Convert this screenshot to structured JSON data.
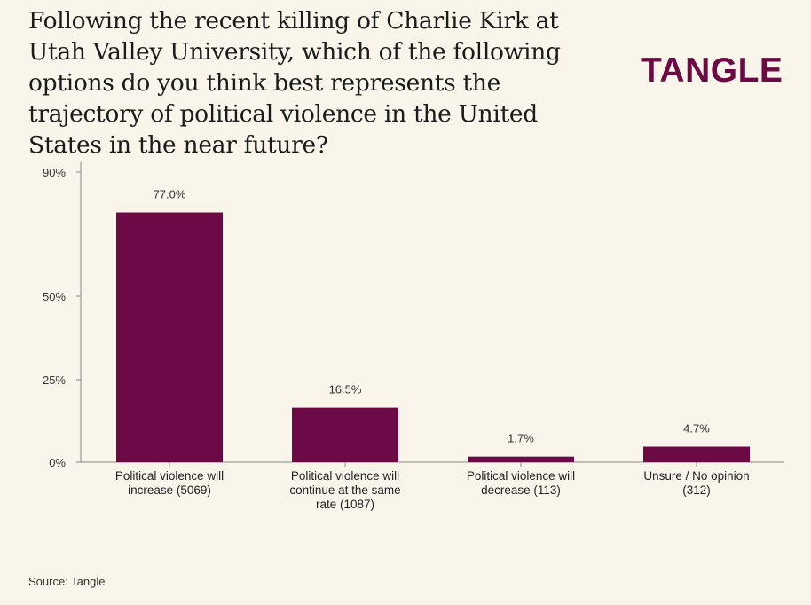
{
  "header": {
    "question": "Following the recent killing of Charlie Kirk at Utah Valley University, which of the following options do you think best represents the trajectory of political violence in the United States in the near future?",
    "logo": "TANGLE"
  },
  "colors": {
    "bar": "#6b0a45",
    "axis": "#888888",
    "background": "#f9f5ea"
  },
  "footer": {
    "source": "Source: Tangle"
  },
  "chart_data": {
    "type": "bar",
    "title": "Following the recent killing of Charlie Kirk at Utah Valley University, which of the following options do you think best represents the trajectory of political violence in the United States in the near future?",
    "categories": [
      [
        "Political violence will",
        "increase (5069)"
      ],
      [
        "Political violence will",
        "continue at the same",
        "rate (1087)"
      ],
      [
        "Political violence will",
        "decrease (113)"
      ],
      [
        "Unsure / No opinion",
        "(312)"
      ]
    ],
    "values": [
      77.0,
      16.5,
      1.7,
      4.7
    ],
    "value_labels": [
      "77.0%",
      "16.5%",
      "1.7%",
      "4.7%"
    ],
    "y_ticks": [
      {
        "value": 0,
        "label": "0%"
      },
      {
        "value": 25,
        "label": "25%"
      },
      {
        "value": 50,
        "label": "50%"
      },
      {
        "value": 90,
        "label": "90%"
      }
    ],
    "xlabel": "",
    "ylabel": "",
    "ylim": [
      0,
      90
    ]
  }
}
